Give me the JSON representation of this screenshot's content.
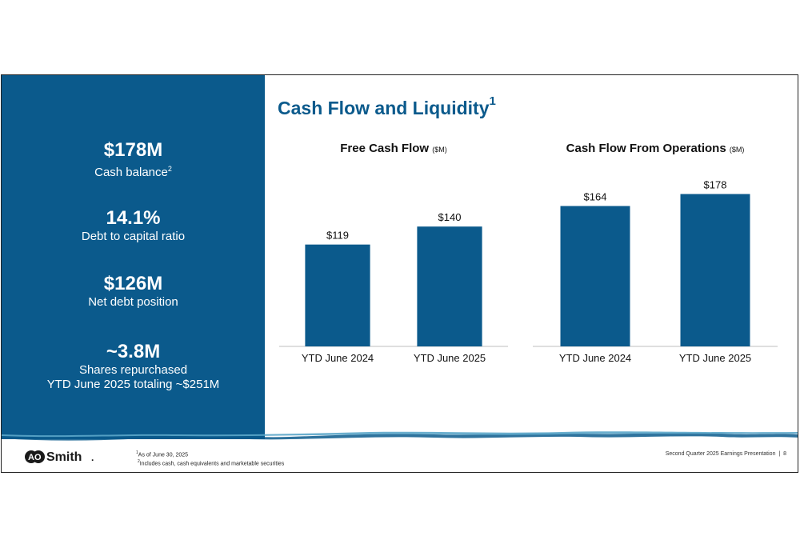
{
  "slide": {
    "title": "Cash Flow and Liquidity",
    "title_sup": "1"
  },
  "stats": [
    {
      "value": "$178M",
      "label": "Cash balance",
      "sup": "2"
    },
    {
      "value": "14.1%",
      "label": "Debt to capital ratio"
    },
    {
      "value": "$126M",
      "label": "Net debt position"
    },
    {
      "value": "~3.8M",
      "label_line1": "Shares repurchased",
      "label_line2": "YTD June 2025 totaling ~$251M"
    }
  ],
  "chart_data": [
    {
      "type": "bar",
      "title": "Free Cash Flow",
      "unit": "($M)",
      "categories": [
        "YTD June 2024",
        "YTD June 2025"
      ],
      "values": [
        119,
        140
      ],
      "value_labels": [
        "$119",
        "$140"
      ],
      "color": "#0b5a8c"
    },
    {
      "type": "bar",
      "title": "Cash Flow From Operations",
      "unit": "($M)",
      "categories": [
        "YTD June 2024",
        "YTD June 2025"
      ],
      "values": [
        164,
        178
      ],
      "value_labels": [
        "$164",
        "$178"
      ],
      "color": "#0b5a8c"
    }
  ],
  "footer": {
    "note1_sup": "1",
    "note1": "As of June 30, 2025",
    "note2_sup": "2",
    "note2": "Includes cash, cash equivalents and marketable securities",
    "presentation": "Second Quarter 2025 Earnings Presentation",
    "separator": "|",
    "page_number": "8"
  },
  "logo": {
    "text_ao": "AO",
    "text_smith": "Smith",
    "mark": "."
  },
  "colors": {
    "brand": "#0b5a8c",
    "wave": "#5ba6c9"
  }
}
